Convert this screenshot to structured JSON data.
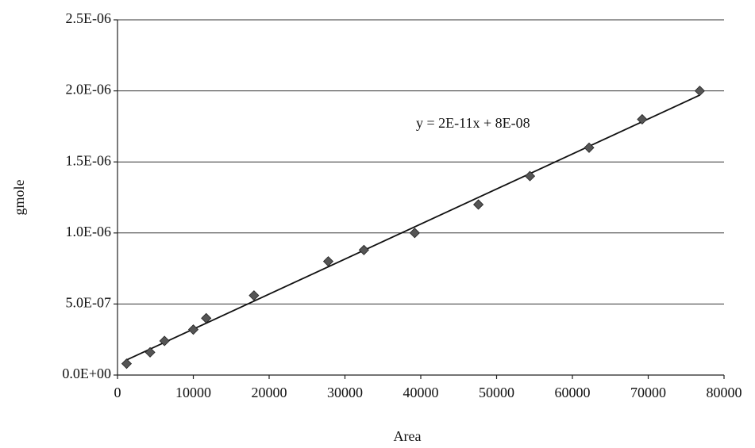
{
  "chart_data": {
    "type": "scatter",
    "x_label": "Area",
    "y_label": "gmole",
    "annotation": "y = 2E-11x + 8E-08",
    "x": [
      1200,
      4300,
      6200,
      10000,
      11700,
      18000,
      27800,
      32500,
      39200,
      47600,
      54400,
      62200,
      69200,
      76800
    ],
    "series": [
      {
        "name": "gmole",
        "color": "#555555",
        "values": [
          8e-08,
          1.6e-07,
          2.4e-07,
          3.2e-07,
          4e-07,
          5.6e-07,
          8e-07,
          8.8e-07,
          1e-06,
          1.2e-06,
          1.4e-06,
          1.6e-06,
          1.8e-06,
          2e-06
        ]
      }
    ],
    "xlim": [
      0,
      80000
    ],
    "xticks": [
      0,
      10000,
      20000,
      30000,
      40000,
      50000,
      60000,
      70000,
      80000
    ],
    "ylim": [
      0,
      2.5e-06
    ],
    "yticks": [
      {
        "value": 0,
        "label": "0.0E+00"
      },
      {
        "value": 5e-07,
        "label": "5.0E-07"
      },
      {
        "value": 1e-06,
        "label": "1.0E-06"
      },
      {
        "value": 1.5e-06,
        "label": "1.5E-06"
      },
      {
        "value": 2e-06,
        "label": "2.0E-06"
      },
      {
        "value": 2.5e-06,
        "label": "2.5E-06"
      }
    ],
    "grid": true,
    "trendline": true
  }
}
